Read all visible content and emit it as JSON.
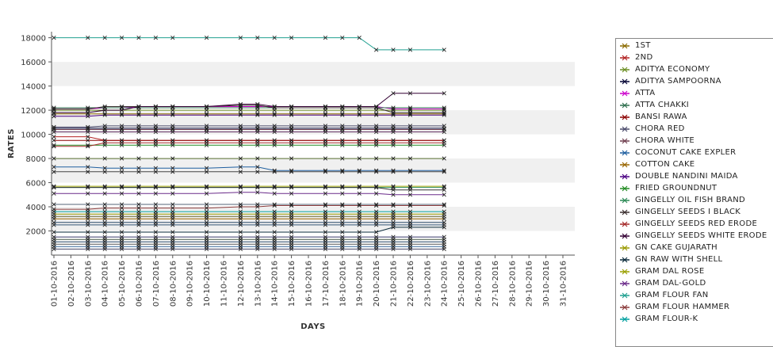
{
  "chart_data": {
    "type": "line",
    "title": "",
    "xlabel": "DAYS",
    "ylabel": "RATES",
    "x_ticks": [
      "01-10-2016",
      "02-10-2016",
      "03-10-2016",
      "04-10-2016",
      "05-10-2016",
      "06-10-2016",
      "07-10-2016",
      "08-10-2016",
      "09-10-2016",
      "10-10-2016",
      "11-10-2016",
      "12-10-2016",
      "13-10-2016",
      "14-10-2016",
      "15-10-2016",
      "16-10-2016",
      "17-10-2016",
      "18-10-2016",
      "19-10-2016",
      "20-10-2016",
      "21-10-2016",
      "22-10-2016",
      "23-10-2016",
      "24-10-2016",
      "25-10-2016",
      "26-10-2016",
      "27-10-2016",
      "28-10-2016",
      "29-10-2016",
      "30-10-2016",
      "31-10-2016"
    ],
    "x_data": [
      "01-10-2016",
      "03-10-2016",
      "04-10-2016",
      "05-10-2016",
      "06-10-2016",
      "07-10-2016",
      "08-10-2016",
      "10-10-2016",
      "12-10-2016",
      "13-10-2016",
      "14-10-2016",
      "15-10-2016",
      "17-10-2016",
      "18-10-2016",
      "19-10-2016",
      "20-10-2016",
      "21-10-2016",
      "22-10-2016",
      "24-10-2016"
    ],
    "ylim": [
      0,
      18500
    ],
    "y_ticks": [
      2000,
      4000,
      6000,
      8000,
      10000,
      12000,
      14000,
      16000,
      18000
    ],
    "grid": "alternating horizontal bands",
    "legend_position": "right",
    "series": [
      {
        "name": "1ST",
        "color": "#8b6a00",
        "values": [
          11700,
          11700,
          11700,
          11700,
          11700,
          11700,
          11700,
          11700,
          11700,
          11700,
          11700,
          11700,
          11700,
          11700,
          11700,
          11700,
          11700,
          11700,
          11700
        ]
      },
      {
        "name": "2ND",
        "color": "#b22222",
        "values": [
          9800,
          9800,
          9500,
          9500,
          9500,
          9500,
          9500,
          9500,
          9500,
          9500,
          9500,
          9500,
          9500,
          9500,
          9500,
          9500,
          9500,
          9500,
          9500
        ]
      },
      {
        "name": "ADITYA ECONOMY",
        "color": "#6b8e23",
        "values": [
          12000,
          12000,
          12000,
          12000,
          12000,
          12000,
          12000,
          12000,
          12000,
          12000,
          12000,
          12000,
          12000,
          12000,
          12000,
          12000,
          12000,
          12000,
          12000
        ]
      },
      {
        "name": "ADITYA SAMPOORNA",
        "color": "#000033",
        "values": [
          10500,
          10500,
          10500,
          10500,
          10500,
          10500,
          10500,
          10500,
          10500,
          10500,
          10500,
          10500,
          10500,
          10500,
          10500,
          10500,
          10500,
          10500,
          10500
        ]
      },
      {
        "name": "ATTA",
        "color": "#cc00cc",
        "values": [
          12100,
          12100,
          12200,
          12200,
          12300,
          12300,
          12300,
          12300,
          12300,
          12300,
          12300,
          12300,
          12300,
          12300,
          12300,
          12300,
          12100,
          12100,
          12100
        ]
      },
      {
        "name": "ATTA CHAKKI",
        "color": "#2f6f4f",
        "values": [
          12200,
          12200,
          12200,
          12200,
          12200,
          12200,
          12200,
          12200,
          12200,
          12200,
          12200,
          12200,
          12200,
          12200,
          12200,
          12200,
          12200,
          12200,
          12200
        ]
      },
      {
        "name": "BANSI RAWA",
        "color": "#8b0000",
        "values": [
          9500,
          9500,
          9500,
          9500,
          9500,
          9500,
          9500,
          9500,
          9500,
          9500,
          9500,
          9500,
          9500,
          9500,
          9500,
          9500,
          9500,
          9500,
          9500
        ]
      },
      {
        "name": "CHORA RED",
        "color": "#4b4b6b",
        "values": [
          10600,
          10600,
          10700,
          10700,
          10700,
          10700,
          10700,
          10700,
          10700,
          10700,
          10700,
          10700,
          10700,
          10700,
          10700,
          10700,
          10700,
          10700,
          10700
        ]
      },
      {
        "name": "CHORA WHITE",
        "color": "#704050",
        "values": [
          10400,
          10400,
          10400,
          10400,
          10400,
          10400,
          10400,
          10400,
          10400,
          10400,
          10400,
          10400,
          10400,
          10400,
          10400,
          10400,
          10400,
          10400,
          10400
        ]
      },
      {
        "name": "COCONUT CAKE EXPLER",
        "color": "#1f5fa0",
        "values": [
          7300,
          7300,
          7200,
          7200,
          7200,
          7200,
          7200,
          7200,
          7300,
          7300,
          7000,
          7000,
          7000,
          7000,
          7000,
          7000,
          7000,
          7000,
          7000
        ]
      },
      {
        "name": "COTTON CAKE",
        "color": "#996600",
        "values": [
          3000,
          3000,
          3000,
          3000,
          3000,
          3000,
          3000,
          3000,
          3000,
          3000,
          3000,
          3000,
          3000,
          3000,
          3000,
          3000,
          3000,
          3000,
          3000
        ]
      },
      {
        "name": "DOUBLE NANDINI MAIDA",
        "color": "#4b0082",
        "values": [
          11500,
          11500,
          11600,
          11600,
          11600,
          11600,
          11600,
          11600,
          11600,
          11600,
          11600,
          11600,
          11600,
          11600,
          11600,
          11600,
          11600,
          11600,
          11600
        ]
      },
      {
        "name": "FRIED GROUNDNUT",
        "color": "#228b22",
        "values": [
          9100,
          9100,
          9100,
          9100,
          9100,
          9100,
          9100,
          9100,
          9100,
          9100,
          9100,
          9100,
          9100,
          9100,
          9100,
          9100,
          9100,
          9100,
          9100
        ]
      },
      {
        "name": "GINGELLY OIL FISH BRAND",
        "color": "#2e8b57",
        "values": [
          5600,
          5600,
          5600,
          5600,
          5600,
          5600,
          5600,
          5600,
          5600,
          5600,
          5600,
          5600,
          5600,
          5600,
          5600,
          5600,
          5600,
          5600,
          5600
        ]
      },
      {
        "name": "GINGELLY SEEDS I BLACK",
        "color": "#3b2f2f",
        "values": [
          12100,
          12100,
          12300,
          12300,
          12300,
          12300,
          12300,
          12300,
          12400,
          12400,
          12200,
          12200,
          12200,
          12200,
          12200,
          12200,
          11800,
          11800,
          11800
        ]
      },
      {
        "name": "GINGELLY SEEDS RED ERODE",
        "color": "#a52a2a",
        "values": [
          9000,
          9000,
          9300,
          9300,
          9300,
          9300,
          9300,
          9300,
          9300,
          9300,
          9300,
          9300,
          9300,
          9300,
          9300,
          9300,
          9300,
          9300,
          9300
        ]
      },
      {
        "name": "GINGELLY SEEDS WHITE ERODE",
        "color": "#330033",
        "values": [
          11800,
          11800,
          12000,
          12000,
          12300,
          12300,
          12300,
          12300,
          12500,
          12500,
          12300,
          12300,
          12300,
          12300,
          12300,
          12300,
          13400,
          13400,
          13400
        ]
      },
      {
        "name": "GN CAKE GUJARATH",
        "color": "#999900",
        "values": [
          3400,
          3400,
          3400,
          3400,
          3400,
          3400,
          3400,
          3400,
          3400,
          3400,
          3400,
          3400,
          3400,
          3400,
          3400,
          3400,
          3400,
          3400,
          3400
        ]
      },
      {
        "name": "GN RAW WITH SHELL",
        "color": "#0a2a3a",
        "values": [
          1900,
          1900,
          1900,
          1900,
          1900,
          1900,
          1900,
          1900,
          1900,
          1900,
          1900,
          1900,
          1900,
          1900,
          1900,
          1900,
          2300,
          2300,
          2300
        ]
      },
      {
        "name": "GRAM DAL ROSE",
        "color": "#9aa000",
        "values": [
          5700,
          5700,
          5700,
          5700,
          5700,
          5700,
          5700,
          5700,
          5700,
          5700,
          5700,
          5700,
          5700,
          5700,
          5700,
          5700,
          5700,
          5700,
          5700
        ]
      },
      {
        "name": "GRAM DAL-GOLD",
        "color": "#6a2a8a",
        "values": [
          5100,
          5100,
          5100,
          5100,
          5100,
          5100,
          5100,
          5100,
          5200,
          5200,
          5100,
          5100,
          5100,
          5100,
          5100,
          5100,
          5000,
          5000,
          5000
        ]
      },
      {
        "name": "GRAM FLOUR FAN",
        "color": "#20a090",
        "values": [
          18000,
          18000,
          18000,
          18000,
          18000,
          18000,
          18000,
          18000,
          18000,
          18000,
          18000,
          18000,
          18000,
          18000,
          18000,
          17000,
          17000,
          17000,
          17000
        ]
      },
      {
        "name": "GRAM FLOUR HAMMER",
        "color": "#8a3a3a",
        "values": [
          3800,
          3800,
          3900,
          3900,
          3900,
          3900,
          3900,
          3900,
          4000,
          4000,
          4100,
          4100,
          4100,
          4100,
          4100,
          4100,
          4100,
          4100,
          4100
        ]
      },
      {
        "name": "GRAM FLOUR-K",
        "color": "#00a0a0",
        "values": [
          3600,
          3600,
          3600,
          3600,
          3600,
          3600,
          3600,
          3600,
          3600,
          3600,
          3600,
          3600,
          3600,
          3600,
          3600,
          3600,
          3600,
          3600,
          3600
        ]
      }
    ],
    "extra_unlabeled_series": [
      {
        "color": "#556b2f",
        "values": [
          8000,
          8000,
          8000,
          8000,
          8000,
          8000,
          8000,
          8000,
          8000,
          8000,
          8000,
          8000,
          8000,
          8000,
          8000,
          8000,
          8000,
          8000,
          8000
        ]
      },
      {
        "color": "#444444",
        "values": [
          6900,
          6900,
          6900,
          6900,
          6900,
          6900,
          6900,
          6900,
          6900,
          6900,
          6900,
          6900,
          6900,
          6900,
          6900,
          6900,
          6900,
          6900,
          6900
        ]
      },
      {
        "color": "#333333",
        "values": [
          5600,
          5600,
          5600,
          5600,
          5600,
          5600,
          5600,
          5600,
          5600,
          5600,
          5600,
          5600,
          5600,
          5600,
          5600,
          5600,
          5400,
          5400,
          5400
        ]
      },
      {
        "color": "#556677",
        "values": [
          4200,
          4200,
          4200,
          4200,
          4200,
          4200,
          4200,
          4200,
          4200,
          4200,
          4200,
          4200,
          4200,
          4200,
          4200,
          4200,
          4200,
          4200,
          4200
        ]
      },
      {
        "color": "#666633",
        "values": [
          3200,
          3200,
          3200,
          3200,
          3200,
          3200,
          3200,
          3200,
          3200,
          3200,
          3200,
          3200,
          3200,
          3200,
          3200,
          3200,
          3200,
          3200,
          3200
        ]
      },
      {
        "color": "#2a4a6a",
        "values": [
          2700,
          2700,
          2700,
          2700,
          2700,
          2700,
          2700,
          2700,
          2700,
          2700,
          2700,
          2700,
          2700,
          2700,
          2700,
          2700,
          2700,
          2700,
          2700
        ]
      },
      {
        "color": "#335577",
        "values": [
          2500,
          2500,
          2500,
          2500,
          2500,
          2500,
          2500,
          2500,
          2500,
          2500,
          2500,
          2500,
          2500,
          2500,
          2500,
          2500,
          2500,
          2500,
          2500
        ]
      },
      {
        "color": "#3a3a6a",
        "values": [
          1500,
          1500,
          1500,
          1500,
          1500,
          1500,
          1500,
          1500,
          1500,
          1500,
          1500,
          1500,
          1500,
          1500,
          1500,
          1500,
          1500,
          1500,
          1500
        ]
      },
      {
        "color": "#445544",
        "values": [
          1300,
          1300,
          1300,
          1300,
          1300,
          1300,
          1300,
          1300,
          1300,
          1300,
          1300,
          1300,
          1300,
          1300,
          1300,
          1300,
          1300,
          1300,
          1300
        ]
      },
      {
        "color": "#224466",
        "values": [
          1100,
          1100,
          1100,
          1100,
          1100,
          1100,
          1100,
          1100,
          1100,
          1100,
          1100,
          1100,
          1100,
          1100,
          1100,
          1100,
          1100,
          1100,
          1100
        ]
      },
      {
        "color": "#555555",
        "values": [
          900,
          900,
          900,
          900,
          900,
          900,
          900,
          900,
          900,
          900,
          900,
          900,
          900,
          900,
          900,
          900,
          900,
          900,
          900
        ]
      },
      {
        "color": "#336699",
        "values": [
          700,
          700,
          700,
          700,
          700,
          700,
          700,
          700,
          700,
          700,
          700,
          700,
          700,
          700,
          700,
          700,
          700,
          700,
          700
        ]
      },
      {
        "color": "#444466",
        "values": [
          500,
          500,
          500,
          500,
          500,
          500,
          500,
          500,
          500,
          500,
          500,
          500,
          500,
          500,
          500,
          500,
          500,
          500,
          500
        ]
      },
      {
        "color": "#663366",
        "values": [
          10200,
          10200,
          10200,
          10200,
          10200,
          10200,
          10200,
          10200,
          10200,
          10200,
          10200,
          10200,
          10200,
          10200,
          10200,
          10200,
          10200,
          10200,
          10200
        ]
      }
    ]
  }
}
